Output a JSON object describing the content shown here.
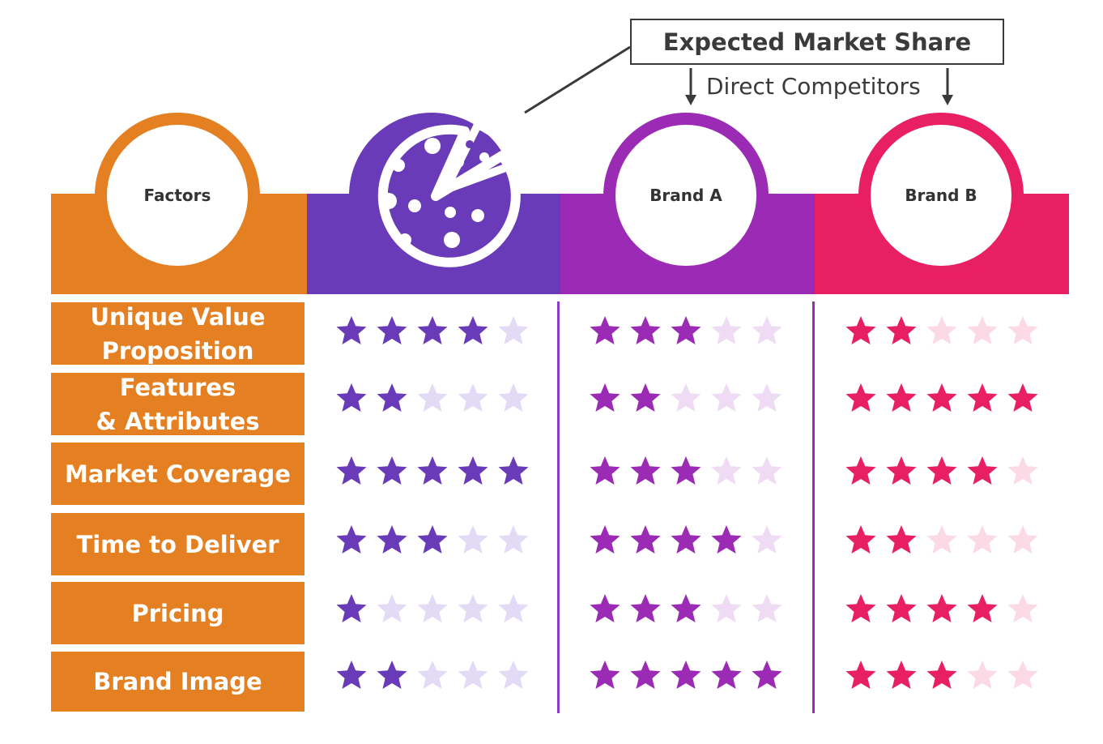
{
  "callout": {
    "title": "Expected Market Share",
    "subtitle": "Direct Competitors"
  },
  "headers": {
    "factors": "Factors",
    "brand_a": "Brand A",
    "brand_b": "Brand B",
    "own_icon": "pizza-icon"
  },
  "colors": {
    "orange": "#e47f22",
    "indigo": "#6a3bb8",
    "purple": "#9b2bb5",
    "pink": "#e91f63",
    "indigo_light": "#e3dbf5",
    "purple_light": "#efdcf4",
    "pink_light": "#fbd9e5"
  },
  "factors": [
    "Unique Value\nProposition",
    "Features\n& Attributes",
    "Market Coverage",
    "Time to Deliver",
    "Pricing",
    "Brand Image"
  ],
  "ratings": {
    "max": 5,
    "own": [
      4,
      2,
      5,
      3,
      1,
      2
    ],
    "brand_a": [
      3,
      2,
      3,
      4,
      3,
      5
    ],
    "brand_b": [
      2,
      5,
      4,
      2,
      4,
      3
    ]
  }
}
